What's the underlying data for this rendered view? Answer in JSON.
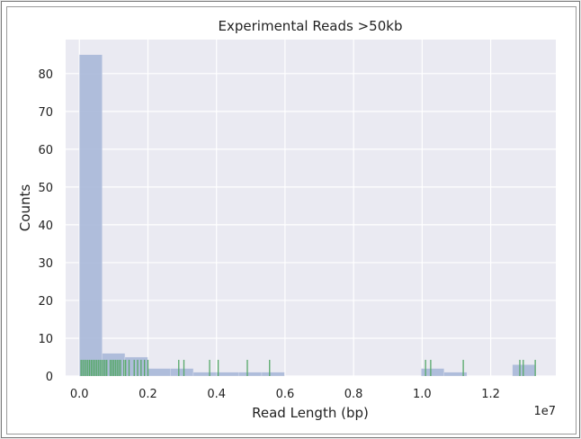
{
  "chart_data": {
    "type": "bar",
    "title": "Experimental Reads >50kb",
    "xlabel": "Read Length (bp)",
    "ylabel": "Counts",
    "x_offset_label": "1e7",
    "xlim": [
      -0.04,
      1.39
    ],
    "ylim": [
      0,
      89
    ],
    "grid": true,
    "xticks": [
      0.0,
      0.2,
      0.4,
      0.6,
      0.8,
      1.0,
      1.2
    ],
    "xtick_labels": [
      "0.0",
      "0.2",
      "0.4",
      "0.6",
      "0.8",
      "1.0",
      "1.2"
    ],
    "yticks": [
      0,
      10,
      20,
      30,
      40,
      50,
      60,
      70,
      80
    ],
    "ytick_labels": [
      "0",
      "10",
      "20",
      "30",
      "40",
      "50",
      "60",
      "70",
      "80"
    ],
    "bin_width": 0.0665,
    "bin_start": 0.0,
    "counts": [
      85,
      6,
      5,
      2,
      2,
      1,
      1,
      1,
      1,
      0,
      0,
      0,
      0,
      0,
      0,
      2,
      1,
      0,
      0,
      3
    ],
    "rug_x": [
      0.005,
      0.01,
      0.015,
      0.02,
      0.025,
      0.03,
      0.035,
      0.04,
      0.045,
      0.05,
      0.055,
      0.06,
      0.065,
      0.07,
      0.075,
      0.08,
      0.09,
      0.095,
      0.1,
      0.105,
      0.11,
      0.115,
      0.12,
      0.13,
      0.135,
      0.145,
      0.16,
      0.17,
      0.18,
      0.19,
      0.2,
      0.29,
      0.305,
      0.38,
      0.405,
      0.49,
      0.555,
      1.01,
      1.025,
      1.12,
      1.285,
      1.295,
      1.33
    ],
    "colors": {
      "bars": "#a8b8d8",
      "rug": "#55a868",
      "background": "#eaeaf2",
      "grid": "#ffffff"
    }
  }
}
